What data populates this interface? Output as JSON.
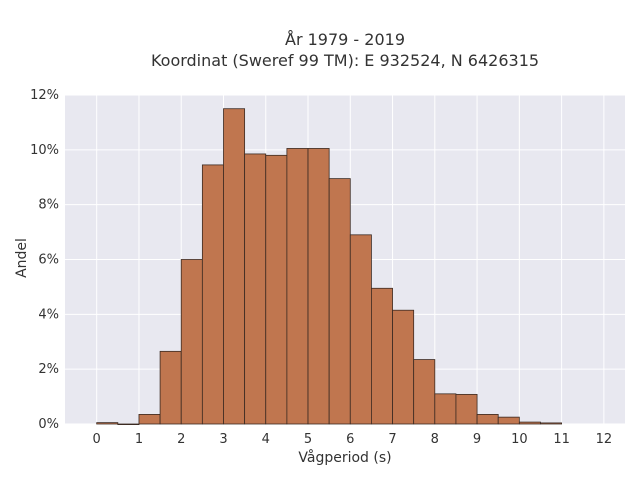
{
  "chart_data": {
    "type": "bar",
    "title_lines": [
      "År 1979 - 2019",
      "Koordinat (Sweref 99 TM): E 932524, N 6426315"
    ],
    "xlabel": "Vågperiod (s)",
    "ylabel": "Andel",
    "xlim": [
      -0.75,
      12.5
    ],
    "ylim": [
      0,
      12
    ],
    "x_ticks": [
      0,
      1,
      2,
      3,
      4,
      5,
      6,
      7,
      8,
      9,
      10,
      11,
      12
    ],
    "y_ticks": [
      0,
      2,
      4,
      6,
      8,
      10,
      12
    ],
    "y_tick_labels": [
      "0%",
      "2%",
      "4%",
      "6%",
      "8%",
      "10%",
      "12%"
    ],
    "bin_width": 0.5,
    "bin_start": 0,
    "values": [
      0.05,
      0,
      0.35,
      2.65,
      6.0,
      9.45,
      11.5,
      9.85,
      9.8,
      10.05,
      10.05,
      8.95,
      6.9,
      4.95,
      4.15,
      2.35,
      1.1,
      1.08,
      0.35,
      0.25,
      0.07,
      0.04
    ],
    "grid": true,
    "bar_color": "#C0764F",
    "bar_edge_color": "#3b2a22",
    "plot_background": "#E8E8F0",
    "grid_color": "#ffffff"
  }
}
